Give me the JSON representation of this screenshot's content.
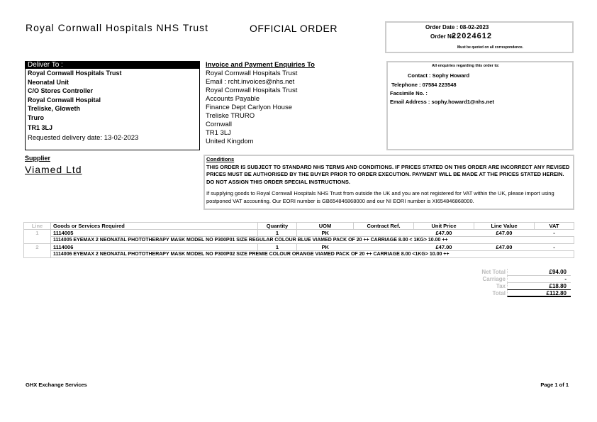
{
  "header": {
    "trust": "Royal Cornwall Hospitals NHS Trust",
    "title": "OFFICIAL ORDER",
    "order_date": "Order Date : 08-02-2023",
    "order_no_label": "Order No :",
    "order_no": "22024612",
    "quote_note": "Must be quoted on all correspondence."
  },
  "deliver": {
    "label": "Deliver To :",
    "lines": [
      "Royal Cornwall Hospitals Trust",
      "Neonatal Unit",
      "C/O Stores Controller",
      "Royal Cornwall Hospital",
      "Treliske, Gloweth",
      "Truro"
    ],
    "postcode": "TR1 3LJ",
    "requested": "Requested delivery date: 13-02-2023"
  },
  "invoice": {
    "label": "Invoice and Payment Enquiries To",
    "lines": [
      "Royal Cornwall Hospitals Trust",
      "Email : rcht.invoices@nhs.net",
      "Royal Cornwall Hospitals Trust",
      "Accounts Payable",
      "Finance Dept Carlyon House",
      "Treliske TRURO",
      "Cornwall",
      "TR1 3LJ",
      "United Kingdom"
    ]
  },
  "contact": {
    "intro": "All enquiries regarding this order to:",
    "contact": "Contact : Sophy Howard",
    "telephone": "Telephone : 07584 223548",
    "fax": "Facsimile No. :",
    "email": "Email Address : sophy.howard1@nhs.net"
  },
  "supplier": {
    "label": "Supplier",
    "name": "Viamed Ltd"
  },
  "conditions": {
    "label": "Conditions",
    "p1": "THIS ORDER IS SUBJECT TO STANDARD NHS TERMS AND CONDITIONS. IF PRICES STATED ON THIS ORDER ARE INCORRECT ANY REVISED PRICES MUST BE AUTHORISED BY THE BUYER PRIOR TO ORDER EXECUTION. PAYMENT WILL BE MADE AT THE PRICES STATED HEREIN. DO NOT ASSIGN THIS ORDER SPECIAL INSTRUCTIONS.",
    "p2": "If supplying goods to Royal Cornwall Hospitals NHS Trust from outside the UK and you are not registered for VAT within the UK, please import using postponed VAT accounting. Our EORI number is GB654846868000 and our NI EORI number is XI654846868000."
  },
  "table": {
    "headers": [
      "Line",
      "Goods or Services Required",
      "Quantity",
      "UOM",
      "Contract Ref.",
      "Unit Price",
      "Line Value",
      "VAT"
    ],
    "rows": [
      {
        "line": "1",
        "code": "1114005",
        "qty": "1",
        "uom": "PK",
        "contract": "",
        "unit": "£47.00",
        "value": "£47.00",
        "vat": "-",
        "desc": "1114005 EYEMAX 2 NEONATAL PHOTOTHERAPY MASK MODEL NO P300P01 SIZE REGULAR COLOUR BLUE VIAMED PACK OF 20 ++ CARRIAGE 8.00 < 1KG> 10.00 ++"
      },
      {
        "line": "2",
        "code": "1114006",
        "qty": "1",
        "uom": "PK",
        "contract": "",
        "unit": "£47.00",
        "value": "£47.00",
        "vat": "-",
        "desc": "1114006 EYEMAX 2 NEONATAL PHOTOTHERAPY MASK MODEL NO P300P02 SIZE PREMIE COLOUR ORANGE VIAMED PACK OF 20 ++ CARRIAGE 8.00 <1KG> 10.00 ++"
      }
    ]
  },
  "totals": {
    "net_label": "Net Total",
    "net": "£94.00",
    "carriage_label": "Carriage",
    "carriage": "-",
    "tax_label": "Tax",
    "tax": "£18.80",
    "total_label": "Total",
    "total": "£112.80"
  },
  "footer": {
    "left": "GHX Exchange Services",
    "right": "Page 1 of 1"
  }
}
